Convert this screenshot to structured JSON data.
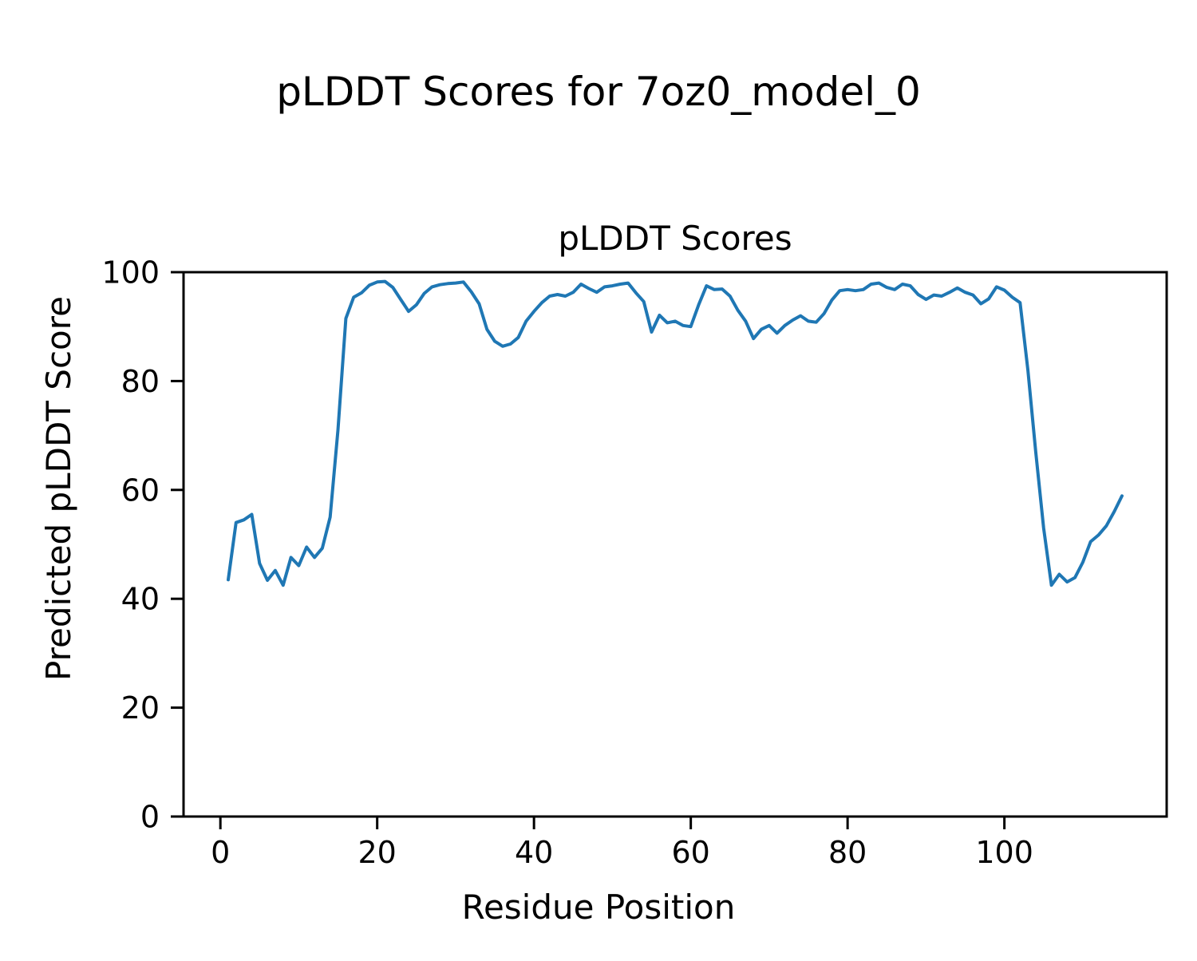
{
  "figure": {
    "suptitle": "pLDDT Scores for 7oz0_model_0",
    "axes_title": "pLDDT Scores",
    "xlabel": "Residue Position",
    "ylabel": "Predicted pLDDT Score",
    "background_color": "#ffffff",
    "text_color": "#000000"
  },
  "chart_data": {
    "type": "line",
    "title": "pLDDT Scores",
    "suptitle": "pLDDT Scores for 7oz0_model_0",
    "xlabel": "Residue Position",
    "ylabel": "Predicted pLDDT Score",
    "line_color": "#1f77b4",
    "line_width": 4,
    "grid": false,
    "legend": "none",
    "xlim": [
      -4.7,
      120.7
    ],
    "ylim": [
      0,
      100
    ],
    "x_ticks": [
      0,
      20,
      40,
      60,
      80,
      100
    ],
    "y_ticks": [
      0,
      20,
      40,
      60,
      80,
      100
    ],
    "x_start": 1,
    "values": [
      43.5,
      54.0,
      54.5,
      55.5,
      46.5,
      43.4,
      45.2,
      42.5,
      47.6,
      46.1,
      49.5,
      47.6,
      49.3,
      55.0,
      71.0,
      91.5,
      95.4,
      96.2,
      97.6,
      98.2,
      98.3,
      97.2,
      95.0,
      92.8,
      94.0,
      96.1,
      97.3,
      97.7,
      97.9,
      98.0,
      98.2,
      96.4,
      94.2,
      89.5,
      87.3,
      86.4,
      86.8,
      88.0,
      91.0,
      92.8,
      94.4,
      95.6,
      95.9,
      95.6,
      96.3,
      97.8,
      97.0,
      96.3,
      97.3,
      97.5,
      97.8,
      98.0,
      96.2,
      94.6,
      89.0,
      92.1,
      90.7,
      91.0,
      90.2,
      90.0,
      94.0,
      97.5,
      96.8,
      96.9,
      95.6,
      93.0,
      91.0,
      87.8,
      89.5,
      90.2,
      88.8,
      90.2,
      91.2,
      92.0,
      91.0,
      90.8,
      92.4,
      94.9,
      96.6,
      96.8,
      96.6,
      96.8,
      97.8,
      98.0,
      97.2,
      96.8,
      97.8,
      97.5,
      95.9,
      95.0,
      95.8,
      95.6,
      96.3,
      97.1,
      96.3,
      95.8,
      94.2,
      95.1,
      97.3,
      96.7,
      95.4,
      94.4,
      82.0,
      67.0,
      53.0,
      42.5,
      44.5,
      43.1,
      43.9,
      46.7,
      50.5,
      51.7,
      53.4,
      56.0,
      58.9
    ]
  }
}
